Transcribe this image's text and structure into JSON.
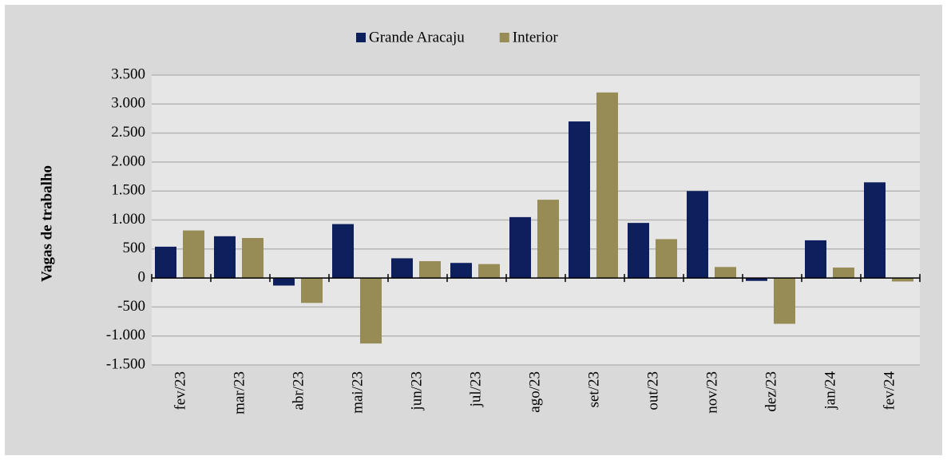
{
  "chart_data": {
    "type": "bar",
    "categories": [
      "fev/23",
      "mar/23",
      "abr/23",
      "mai/23",
      "jun/23",
      "jul/23",
      "ago/23",
      "set/23",
      "out/23",
      "nov/23",
      "dez/23",
      "jan/24",
      "fev/24"
    ],
    "series": [
      {
        "name": "Grande Aracaju",
        "color": "#0d1f5c",
        "values": [
          540,
          720,
          -130,
          930,
          340,
          260,
          1050,
          2700,
          950,
          1500,
          -50,
          650,
          1650
        ]
      },
      {
        "name": "Interior",
        "color": "#978b56",
        "values": [
          820,
          690,
          -430,
          -1130,
          290,
          240,
          1350,
          3200,
          670,
          190,
          -790,
          180,
          -60
        ]
      }
    ],
    "ylabel": "Vagas de trabalho",
    "ylim": [
      -1500,
      3500
    ],
    "yticks": [
      {
        "value": -1500,
        "label": "-1.500"
      },
      {
        "value": -1000,
        "label": "-1.000"
      },
      -500,
      0,
      500,
      {
        "value": 1000,
        "label": "1.000"
      },
      {
        "value": 1500,
        "label": "1.500"
      },
      {
        "value": 2000,
        "label": "2.000"
      },
      {
        "value": 2500,
        "label": "2.500"
      },
      {
        "value": 3000,
        "label": "3.000"
      },
      {
        "value": 3500,
        "label": "3.500"
      }
    ],
    "grid": true,
    "legend": "top"
  }
}
